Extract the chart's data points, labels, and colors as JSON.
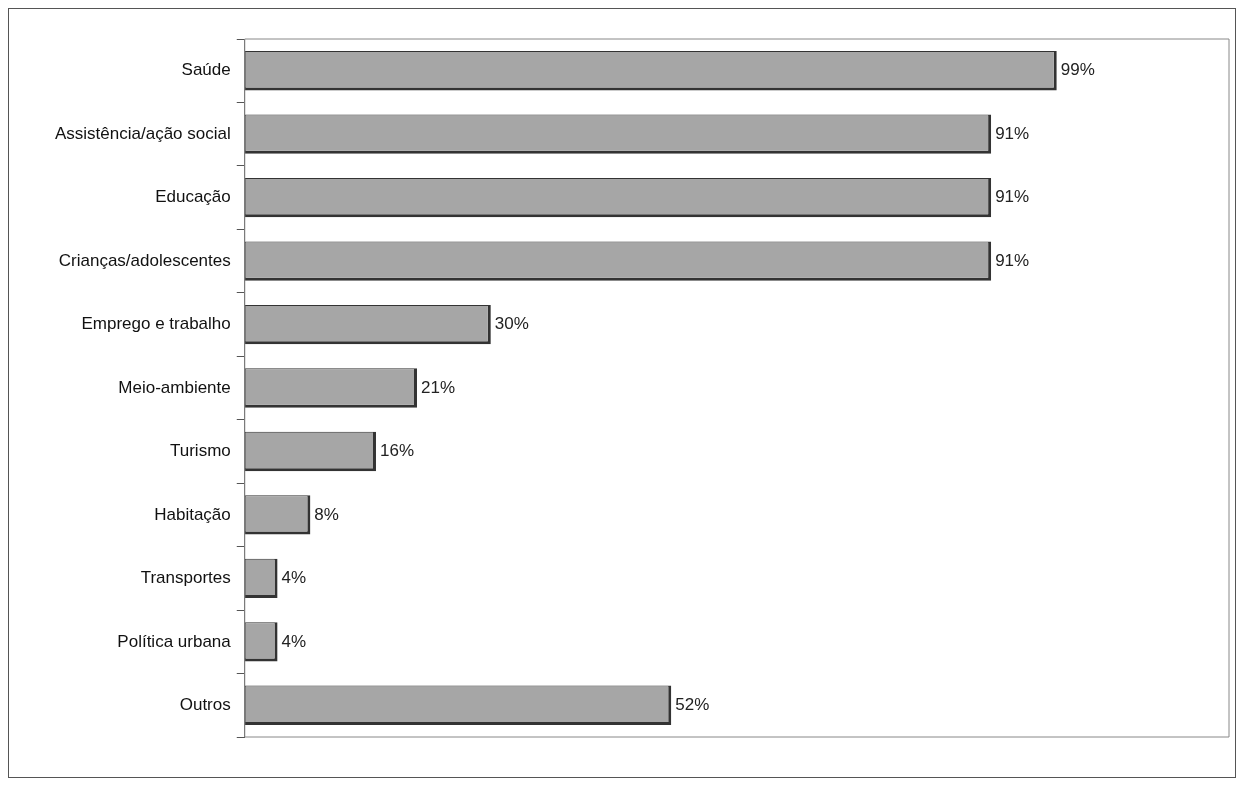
{
  "chart_data": {
    "type": "bar",
    "orientation": "horizontal",
    "categories": [
      "Saúde",
      "Assistência/ação social",
      "Educação",
      "Crianças/adolescentes",
      "Emprego e trabalho",
      "Meio-ambiente",
      "Turismo",
      "Habitação",
      "Transportes",
      "Política urbana",
      "Outros"
    ],
    "values": [
      99,
      91,
      91,
      91,
      30,
      21,
      16,
      8,
      4,
      4,
      52
    ],
    "value_labels": [
      "99%",
      "91%",
      "91%",
      "91%",
      "30%",
      "21%",
      "16%",
      "8%",
      "4%",
      "4%",
      "52%"
    ],
    "color": "#a6a6a6",
    "xlim": [
      0,
      120
    ],
    "tick_labels": "y",
    "grid": false,
    "legend": false
  }
}
